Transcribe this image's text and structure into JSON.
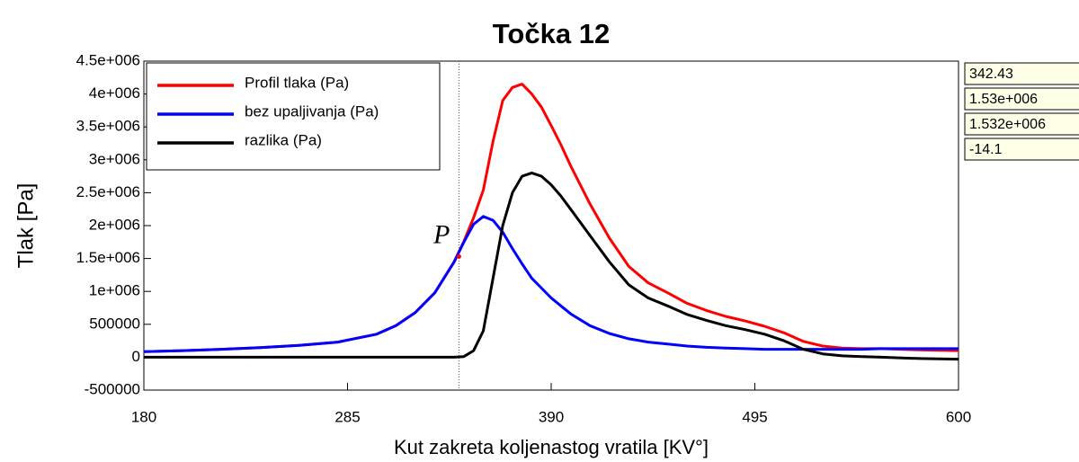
{
  "chart_data": {
    "type": "line",
    "title": "Točka 12",
    "xlabel": "Kut zakreta koljenastog vratila [KV°]",
    "ylabel": "Tlak [Pa]",
    "x": [
      180,
      200,
      220,
      240,
      260,
      280,
      300,
      310,
      320,
      330,
      340,
      345,
      350,
      355,
      360,
      365,
      370,
      375,
      380,
      385,
      390,
      395,
      400,
      410,
      420,
      430,
      440,
      450,
      460,
      470,
      480,
      490,
      500,
      510,
      520,
      530,
      540,
      550,
      560,
      580,
      600
    ],
    "series": [
      {
        "name": "Profil tlaka (Pa)",
        "color": "#ff0000",
        "values": [
          85000,
          100000,
          120000,
          145000,
          180000,
          230000,
          350000,
          480000,
          680000,
          980000,
          1450000,
          1760000,
          2120000,
          2540000,
          3280000,
          3900000,
          4100000,
          4150000,
          4000000,
          3800000,
          3520000,
          3230000,
          2910000,
          2330000,
          1810000,
          1380000,
          1130000,
          980000,
          820000,
          710000,
          620000,
          550000,
          470000,
          370000,
          240000,
          170000,
          140000,
          130000,
          130000,
          110000,
          100000
        ]
      },
      {
        "name": "bez upaljivanja (Pa)",
        "color": "#0000ff",
        "values": [
          85000,
          100000,
          120000,
          145000,
          180000,
          230000,
          350000,
          480000,
          680000,
          980000,
          1450000,
          1750000,
          2020000,
          2140000,
          2080000,
          1900000,
          1650000,
          1420000,
          1200000,
          1050000,
          900000,
          780000,
          660000,
          480000,
          360000,
          280000,
          230000,
          200000,
          170000,
          150000,
          140000,
          130000,
          120000,
          120000,
          120000,
          120000,
          120000,
          120000,
          130000,
          130000,
          130000
        ]
      },
      {
        "name": "razlika (Pa)",
        "color": "#000000",
        "values": [
          0,
          0,
          0,
          0,
          0,
          0,
          0,
          0,
          0,
          0,
          0,
          10000,
          100000,
          400000,
          1200000,
          2000000,
          2500000,
          2750000,
          2800000,
          2750000,
          2620000,
          2450000,
          2250000,
          1850000,
          1450000,
          1100000,
          900000,
          780000,
          650000,
          560000,
          480000,
          420000,
          350000,
          250000,
          120000,
          50000,
          20000,
          10000,
          0,
          -20000,
          -30000
        ]
      }
    ],
    "xlim": [
      180,
      600
    ],
    "xticks": [
      180,
      285,
      390,
      495,
      600
    ],
    "ylim": [
      -500000,
      4500000
    ],
    "yticks": [
      -500000,
      0,
      500000,
      {
        "value": 1000000,
        "label": "1e+006"
      },
      {
        "value": 1500000,
        "label": "1.5e+006"
      },
      {
        "value": 2000000,
        "label": "2e+006"
      },
      {
        "value": 2500000,
        "label": "2.5e+006"
      },
      {
        "value": 3000000,
        "label": "3e+006"
      },
      {
        "value": 3500000,
        "label": "3.5e+006"
      },
      {
        "value": 4000000,
        "label": "4e+006"
      },
      {
        "value": 4500000,
        "label": "4.5e+006"
      }
    ],
    "grid": false,
    "legend": "upper left",
    "cursor": {
      "x": 342.43,
      "y": 1530000,
      "label": "P",
      "readouts": [
        "1.53e+006",
        "1.532e+006",
        "-14.1"
      ]
    }
  }
}
